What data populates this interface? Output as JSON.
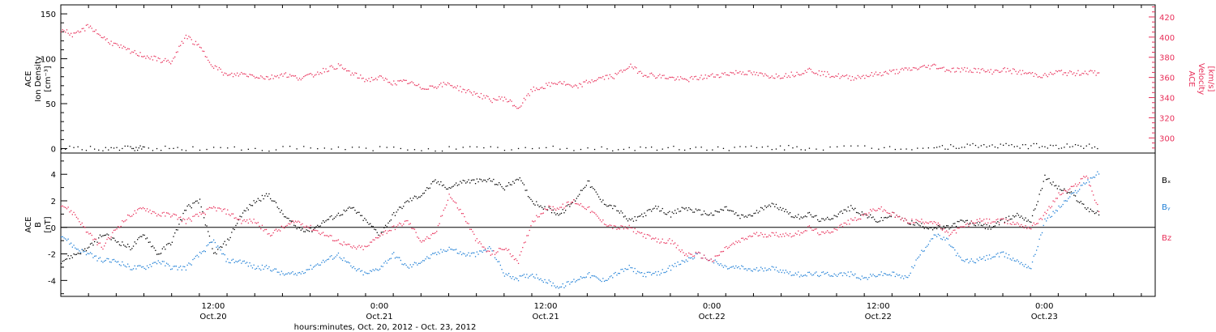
{
  "x_axis": {
    "title": "hours:minutes, Oct. 20, 2012 - Oct. 23, 2012",
    "ticks": [
      {
        "hours": 12,
        "time": "12:00",
        "date": "Oct.20"
      },
      {
        "hours": 24,
        "time": "0:00",
        "date": "Oct.21"
      },
      {
        "hours": 36,
        "time": "12:00",
        "date": "Oct.21"
      },
      {
        "hours": 48,
        "time": "0:00",
        "date": "Oct.22"
      },
      {
        "hours": 60,
        "time": "12:00",
        "date": "Oct.22"
      },
      {
        "hours": 72,
        "time": "0:00",
        "date": "Oct.23"
      }
    ]
  },
  "colors": {
    "velocity": "#e8305a",
    "density": "#000000",
    "bx": "#000000",
    "by": "#1f7fd6",
    "bz": "#e8305a"
  },
  "chart_data": [
    {
      "type": "scatter",
      "panel": "top",
      "xlim_hours": [
        1,
        80
      ],
      "left_axis": {
        "label_lines": [
          "ACE",
          "Ion Density",
          "[cm⁻³]"
        ],
        "ylim": [
          -5,
          160
        ],
        "ticks": [
          0,
          50,
          100,
          150
        ]
      },
      "right_axis": {
        "label_lines": [
          "ACE",
          "Velocity",
          "[km/s]"
        ],
        "ylim": [
          285,
          432
        ],
        "ticks": [
          300,
          320,
          340,
          360,
          380,
          400,
          420
        ]
      },
      "series": [
        {
          "key": "density",
          "axis": "left",
          "x_hours": [
            1,
            4,
            6,
            7,
            10,
            15,
            20,
            25,
            30,
            35,
            40,
            44,
            48,
            52,
            55,
            60,
            64,
            66,
            68,
            70,
            72,
            74,
            76
          ],
          "values": [
            0.5,
            0.6,
            0.5,
            0.8,
            0.6,
            0.5,
            0.6,
            0.5,
            0.5,
            0.6,
            0.6,
            0.7,
            1.0,
            1.2,
            1.1,
            1.2,
            1.5,
            3.0,
            3.5,
            3.3,
            3.2,
            3.0,
            3.2
          ]
        },
        {
          "key": "velocity",
          "axis": "right",
          "x_hours": [
            1,
            2,
            3,
            4,
            5,
            6,
            7,
            8,
            9,
            10,
            11,
            12,
            13,
            14,
            15,
            16,
            17,
            18,
            19,
            20,
            21,
            22,
            23,
            24,
            25,
            26,
            27,
            28,
            29,
            30,
            31,
            32,
            33,
            34,
            35,
            36,
            37,
            38,
            39,
            40,
            41,
            42,
            43,
            44,
            45,
            46,
            47,
            48,
            49,
            50,
            51,
            52,
            53,
            54,
            55,
            56,
            57,
            58,
            59,
            60,
            61,
            62,
            63,
            64,
            65,
            66,
            67,
            68,
            69,
            70,
            71,
            72,
            73,
            74,
            75,
            76
          ],
          "values": [
            408,
            402,
            412,
            400,
            392,
            386,
            382,
            378,
            376,
            402,
            390,
            372,
            362,
            364,
            362,
            360,
            364,
            360,
            362,
            368,
            372,
            364,
            358,
            360,
            355,
            356,
            350,
            352,
            354,
            348,
            344,
            338,
            340,
            330,
            348,
            352,
            356,
            350,
            356,
            360,
            362,
            372,
            364,
            362,
            360,
            358,
            360,
            362,
            364,
            366,
            364,
            362,
            362,
            364,
            368,
            364,
            362,
            360,
            362,
            364,
            366,
            368,
            370,
            372,
            368,
            368,
            368,
            366,
            368,
            366,
            364,
            362,
            366,
            364,
            366,
            364
          ]
        }
      ]
    },
    {
      "type": "scatter",
      "panel": "bottom",
      "xlim_hours": [
        1,
        80
      ],
      "left_axis": {
        "label_lines": [
          "ACE",
          "B",
          "[nT]"
        ],
        "ylim": [
          -5.2,
          5.6
        ],
        "ticks": [
          -4,
          -2,
          0,
          2,
          4
        ]
      },
      "zero_line": true,
      "series": [
        {
          "key": "bx",
          "name": "Bₓ",
          "x_hours": [
            1,
            2,
            3,
            4,
            5,
            6,
            7,
            8,
            9,
            10,
            11,
            12,
            13,
            14,
            15,
            16,
            17,
            18,
            19,
            20,
            21,
            22,
            23,
            24,
            25,
            26,
            27,
            28,
            29,
            30,
            31,
            32,
            33,
            34,
            35,
            36,
            37,
            38,
            39,
            40,
            41,
            42,
            43,
            44,
            45,
            46,
            47,
            48,
            49,
            50,
            51,
            52,
            53,
            54,
            55,
            56,
            57,
            58,
            59,
            60,
            61,
            62,
            63,
            64,
            65,
            66,
            67,
            68,
            69,
            70,
            71,
            72,
            73,
            74,
            75,
            76
          ],
          "values": [
            -2.5,
            -2.0,
            -1.5,
            -0.5,
            -1.0,
            -1.5,
            -0.5,
            -2.0,
            -1.0,
            1.5,
            2.0,
            -2.0,
            -1.0,
            1.0,
            2.0,
            2.5,
            1.0,
            0.0,
            -0.2,
            0.5,
            1.0,
            1.5,
            0.5,
            -0.5,
            1.0,
            2.0,
            2.5,
            3.5,
            3.0,
            3.5,
            3.5,
            3.6,
            3.0,
            3.8,
            2.0,
            1.5,
            1.0,
            2.0,
            3.5,
            2.0,
            1.5,
            0.5,
            1.0,
            1.5,
            1.0,
            1.5,
            1.2,
            1.0,
            1.5,
            0.8,
            1.0,
            1.8,
            1.5,
            0.8,
            1.0,
            0.5,
            1.0,
            1.5,
            1.0,
            0.5,
            1.0,
            0.5,
            0.2,
            0.0,
            0.0,
            0.5,
            0.3,
            0.0,
            0.5,
            1.0,
            0.5,
            3.8,
            3.0,
            2.5,
            1.5,
            1.0
          ]
        },
        {
          "key": "by",
          "name": "Bᵧ",
          "x_hours": [
            1,
            2,
            3,
            4,
            5,
            6,
            7,
            8,
            9,
            10,
            11,
            12,
            13,
            14,
            15,
            16,
            17,
            18,
            19,
            20,
            21,
            22,
            23,
            24,
            25,
            26,
            27,
            28,
            29,
            30,
            31,
            32,
            33,
            34,
            35,
            36,
            37,
            38,
            39,
            40,
            41,
            42,
            43,
            44,
            45,
            46,
            47,
            48,
            49,
            50,
            51,
            52,
            53,
            54,
            55,
            56,
            57,
            58,
            59,
            60,
            61,
            62,
            63,
            64,
            65,
            66,
            67,
            68,
            69,
            70,
            71,
            72,
            73,
            74,
            75,
            76
          ],
          "values": [
            -0.5,
            -1.5,
            -2.0,
            -2.5,
            -2.5,
            -3.0,
            -3.0,
            -2.5,
            -3.0,
            -3.0,
            -2.0,
            -1.0,
            -2.5,
            -2.5,
            -3.0,
            -3.0,
            -3.5,
            -3.5,
            -3.0,
            -2.5,
            -2.0,
            -3.0,
            -3.5,
            -3.0,
            -2.0,
            -3.0,
            -2.5,
            -2.0,
            -1.5,
            -2.0,
            -2.0,
            -1.5,
            -3.5,
            -3.8,
            -3.5,
            -4.0,
            -4.5,
            -4.0,
            -3.5,
            -4.0,
            -3.5,
            -3.0,
            -3.5,
            -3.5,
            -3.0,
            -2.5,
            -2.0,
            -2.5,
            -3.0,
            -3.0,
            -3.2,
            -3.0,
            -3.2,
            -3.5,
            -3.5,
            -3.5,
            -3.5,
            -3.5,
            -3.8,
            -3.5,
            -3.5,
            -3.8,
            -2.0,
            -0.5,
            -1.0,
            -2.5,
            -2.5,
            -2.2,
            -2.0,
            -2.5,
            -3.0,
            0.5,
            1.5,
            2.5,
            3.5,
            4.2
          ]
        },
        {
          "key": "bz",
          "name": "Bz",
          "x_hours": [
            1,
            2,
            3,
            4,
            5,
            6,
            7,
            8,
            9,
            10,
            11,
            12,
            13,
            14,
            15,
            16,
            17,
            18,
            19,
            20,
            21,
            22,
            23,
            24,
            25,
            26,
            27,
            28,
            29,
            30,
            31,
            32,
            33,
            34,
            35,
            36,
            37,
            38,
            39,
            40,
            41,
            42,
            43,
            44,
            45,
            46,
            47,
            48,
            49,
            50,
            51,
            52,
            53,
            54,
            55,
            56,
            57,
            58,
            59,
            60,
            61,
            62,
            63,
            64,
            65,
            66,
            67,
            68,
            69,
            70,
            71,
            72,
            73,
            74,
            75,
            76
          ],
          "values": [
            1.8,
            1.0,
            -0.5,
            -1.5,
            0.0,
            1.0,
            1.5,
            1.0,
            1.0,
            0.5,
            1.0,
            1.5,
            1.2,
            0.5,
            0.5,
            -0.5,
            0.0,
            0.5,
            0.0,
            -0.5,
            -1.0,
            -1.5,
            -1.5,
            -0.5,
            0.0,
            0.5,
            -1.0,
            -0.5,
            2.5,
            1.0,
            -1.0,
            -2.0,
            -1.5,
            -2.5,
            0.5,
            1.5,
            1.5,
            2.0,
            1.5,
            0.5,
            0.0,
            0.0,
            -0.5,
            -1.0,
            -1.0,
            -2.0,
            -2.0,
            -2.5,
            -1.5,
            -1.0,
            -0.5,
            -0.5,
            -0.5,
            -0.5,
            0.0,
            -0.5,
            0.0,
            0.5,
            1.0,
            1.5,
            1.0,
            0.5,
            0.5,
            0.5,
            -0.5,
            0.0,
            0.5,
            0.5,
            0.5,
            0.3,
            0.0,
            1.0,
            2.5,
            3.0,
            4.0,
            1.0
          ]
        }
      ]
    }
  ]
}
